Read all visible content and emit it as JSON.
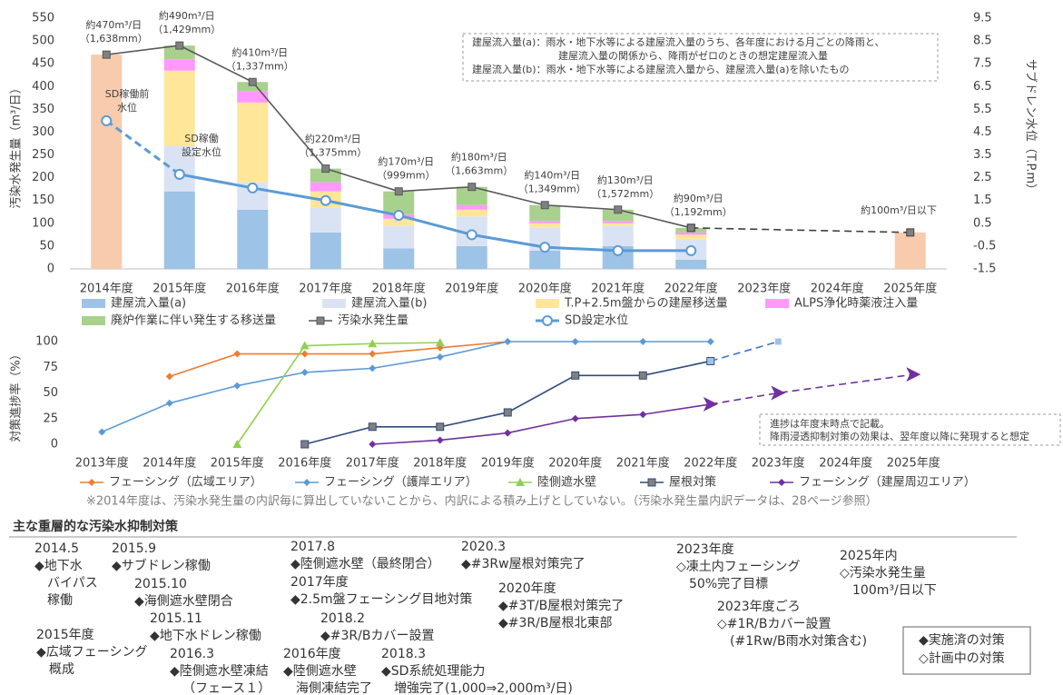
{
  "chart_data": [
    {
      "type": "bar",
      "stacked": true,
      "ylabel": "汚染水発生量（m³/日）",
      "y2label": "サブドレン水位（T.P.m）",
      "categories": [
        "2014年度",
        "2015年度",
        "2016年度",
        "2017年度",
        "2018年度",
        "2019年度",
        "2020年度",
        "2021年度",
        "2022年度",
        "2023年度",
        "2024年度",
        "2025年度"
      ],
      "ylim": [
        0,
        550
      ],
      "yticks": [
        0,
        50,
        100,
        150,
        200,
        250,
        300,
        350,
        400,
        450,
        500,
        550
      ],
      "y2lim": [
        -1.5,
        9.5
      ],
      "y2ticks": [
        -1.5,
        -0.5,
        0.5,
        1.5,
        2.5,
        3.5,
        4.5,
        5.5,
        6.5,
        7.5,
        8.5,
        9.5
      ],
      "grid": false,
      "series": [
        {
          "name": "建屋流入量(a)",
          "color": "#9dc3e6",
          "values": [
            null,
            170,
            130,
            80,
            45,
            50,
            40,
            50,
            20,
            null,
            null,
            null
          ]
        },
        {
          "name": "建屋流入量(b)",
          "color": "#dae3f3",
          "values": [
            null,
            100,
            60,
            55,
            50,
            65,
            50,
            45,
            45,
            null,
            null,
            null
          ]
        },
        {
          "name": "T.P+2.5m盤からの建屋移送量",
          "color": "#ffe699",
          "values": [
            null,
            165,
            175,
            35,
            15,
            15,
            10,
            5,
            10,
            null,
            null,
            null
          ]
        },
        {
          "name": "ALPS浄化時薬液注入量",
          "color": "#ff99ff",
          "values": [
            null,
            25,
            25,
            20,
            10,
            10,
            5,
            5,
            5,
            null,
            null,
            null
          ]
        },
        {
          "name": "廃炉作業に伴い発生する移送量",
          "color": "#a9d18e",
          "values": [
            null,
            30,
            20,
            30,
            50,
            40,
            35,
            25,
            10,
            null,
            null,
            null
          ]
        },
        {
          "color": "#f8cbad",
          "values": [
            470,
            null,
            null,
            null,
            null,
            null,
            null,
            null,
            null,
            null,
            null,
            80
          ]
        },
        {
          "name": "汚染水発生量",
          "type": "line",
          "color": "#595959",
          "marker": "square",
          "values": [
            470,
            490,
            410,
            220,
            170,
            180,
            140,
            130,
            90,
            null,
            null,
            null
          ],
          "value_labels": [
            "約470m³/日",
            "約490m³/日",
            "約410m³/日",
            "約220m³/日",
            "約170m³/日",
            "約180m³/日",
            "約140m³/日",
            "約130m³/日",
            "約90m³/日",
            null,
            null,
            null
          ],
          "rainfall_labels": [
            "（1,638mm）",
            "（1,429mm）",
            "（1,337mm）",
            "（1,375mm）",
            "（999mm）",
            "（1,663mm）",
            "（1,349mm）",
            "（1,572mm）",
            "（1,192mm）",
            null,
            null,
            null
          ]
        },
        {
          "type": "line",
          "color": "#404040",
          "dashed": true,
          "connect_gaps": true,
          "marker": "square",
          "values": [
            null,
            null,
            null,
            null,
            null,
            null,
            null,
            null,
            90,
            null,
            null,
            80
          ]
        },
        {
          "name": "SD設定水位",
          "type": "line",
          "axis": "y2",
          "color": "#5b9bd5",
          "marker": "circle",
          "values": [
            null,
            2.65,
            2.05,
            1.5,
            0.85,
            0.0,
            -0.55,
            -0.7,
            -0.7,
            null,
            null,
            null
          ]
        },
        {
          "type": "line",
          "axis": "y2",
          "color": "#5b9bd5",
          "dashed": true,
          "marker": "circle",
          "values": [
            5.0,
            2.65,
            null,
            null,
            null,
            null,
            null,
            null,
            null,
            null,
            null,
            null
          ]
        }
      ],
      "annotations": [
        "約100m³/日以下",
        "SD稼働前",
        "水位",
        "SD稼働",
        "設定水位"
      ],
      "note": [
        "建屋流入量(a)：雨水・地下水等による建屋流入量のうち、各年度における月ごとの降雨と、",
        "建屋流入量の関係から、降雨がゼロのときの想定建屋流入量",
        "建屋流入量(b)：雨水・地下水等による建屋流入量から、建屋流入量(a)を除いたもの"
      ]
    },
    {
      "type": "line",
      "ylabel": "対策進捗率（%）",
      "categories": [
        "2013年度",
        "2014年度",
        "2015年度",
        "2016年度",
        "2017年度",
        "2018年度",
        "2019年度",
        "2020年度",
        "2021年度",
        "2022年度",
        "2023年度",
        "2024年度",
        "2025年度"
      ],
      "ylim": [
        0,
        100
      ],
      "yticks": [
        0,
        25,
        50,
        75,
        100
      ],
      "grid": false,
      "series": [
        {
          "name": "フェーシング（広域エリア）",
          "color": "#ed7d31",
          "marker": "diamond",
          "values": [
            null,
            66,
            88,
            88,
            88,
            94,
            100,
            null,
            null,
            null,
            null,
            null,
            null
          ]
        },
        {
          "name": "フェーシング（護岸エリア）",
          "color": "#5b9bd5",
          "marker": "diamond",
          "values": [
            12,
            40,
            57,
            70,
            74,
            85,
            100,
            100,
            100,
            100,
            null,
            null,
            null
          ]
        },
        {
          "name": "陸側遮水壁",
          "color": "#92d050",
          "marker": "triangle",
          "values": [
            null,
            null,
            0,
            96,
            98,
            99,
            null,
            null,
            null,
            null,
            null,
            null,
            null
          ]
        },
        {
          "name": "屋根対策",
          "color": "#2f4b7c",
          "marker": "square",
          "values": [
            null,
            null,
            null,
            0,
            17,
            17,
            31,
            67,
            67,
            81,
            null,
            null,
            null
          ]
        },
        {
          "name": "フェーシング（建屋周辺エリア）",
          "color": "#7030a0",
          "marker": "diamond",
          "values": [
            null,
            null,
            null,
            null,
            0,
            4,
            11,
            25,
            29,
            39,
            null,
            null,
            null
          ]
        },
        {
          "type": "line",
          "color": "#4472c4",
          "dashed": true,
          "marker": "square-light",
          "values": [
            null,
            null,
            null,
            null,
            null,
            null,
            null,
            null,
            null,
            81,
            100,
            null,
            null
          ]
        },
        {
          "type": "line",
          "color": "#7030a0",
          "dashed": true,
          "connect_gaps": true,
          "marker": "arrow",
          "values": [
            null,
            null,
            null,
            null,
            null,
            null,
            null,
            null,
            null,
            39,
            50,
            null,
            68
          ]
        }
      ],
      "note": [
        "進捗は年度末時点で記載。",
        "降雨浸透抑制対策の効果は、翌年度以降に発現すると想定"
      ],
      "footnote": "※2014年度は、汚染水発生量の内訳毎に算出していないことから、内訳による積み上げとしていない。（汚染水発生量内訳データは、28ページ参照）"
    }
  ],
  "measures": {
    "title": "主な重層的な汚染水抑制対策",
    "items": [
      {
        "date": "2014.5",
        "lines": [
          "◆地下水",
          "バイパス",
          "稼働"
        ]
      },
      {
        "date": "2015.9",
        "lines": [
          "◆サブドレン稼働"
        ]
      },
      {
        "date": "2015.10",
        "lines": [
          "◆海側遮水壁閉合"
        ]
      },
      {
        "date": "2015.11",
        "lines": [
          "◆地下水ドレン稼働"
        ]
      },
      {
        "date": "2015年度",
        "lines": [
          "◆広域フェーシング",
          "概成"
        ]
      },
      {
        "date": "2016.3",
        "lines": [
          "◆陸側遮水壁凍結",
          "（フェース１）"
        ]
      },
      {
        "date": "2016年度",
        "lines": [
          "◆陸側遮水壁",
          "海側凍結完了"
        ]
      },
      {
        "date": "2017.8",
        "lines": [
          "◆陸側遮水壁（最終閉合）"
        ]
      },
      {
        "date": "2017年度",
        "lines": [
          "◆2.5m盤フェーシング目地対策"
        ]
      },
      {
        "date": "2018.2",
        "lines": [
          "◆#3R/Bカバー設置"
        ]
      },
      {
        "date": "2018.3",
        "lines": [
          "◆SD系統処理能力",
          "増強完了(1,000⇒2,000m³/日)"
        ]
      },
      {
        "date": "2020.3",
        "lines": [
          "◆#3Rw屋根対策完了"
        ]
      },
      {
        "date": "2020年度",
        "lines": [
          "◆#3T/B屋根対策完了",
          "◆#3R/B屋根北東部"
        ]
      },
      {
        "date": "2023年度",
        "lines": [
          "◇凍土内フェーシング",
          "50%完了目標"
        ]
      },
      {
        "date": "2025年内",
        "lines": [
          "◇汚染水発生量",
          "100m³/日以下"
        ]
      },
      {
        "date": "2023年度ごろ",
        "lines": [
          "◇#1R/Bカバー設置",
          "(#1Rw/B雨水対策含む)"
        ]
      }
    ],
    "legend": [
      "◆実施済の対策",
      "◇計画中の対策"
    ]
  }
}
